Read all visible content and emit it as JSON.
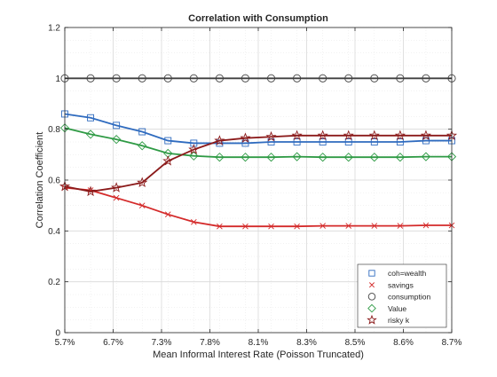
{
  "chart_data": {
    "type": "line",
    "title": "Correlation with Consumption",
    "xlabel": "Mean Informal Interest Rate (Poisson Truncated)",
    "ylabel": "Correlation Coefficient",
    "ylim": [
      0,
      1.2
    ],
    "yticks": [
      "0",
      "0.2",
      "0.4",
      "0.6",
      "0.8",
      "1",
      "1.2"
    ],
    "xticks": [
      "5.7%",
      "6.7%",
      "7.3%",
      "7.8%",
      "8.1%",
      "8.3%",
      "8.5%",
      "8.6%",
      "8.7%"
    ],
    "grid": true,
    "legend_position": "bottom-right",
    "series": [
      {
        "name": "coh=wealth",
        "color": "#2f6bbf",
        "marker": "square",
        "values": [
          0.86,
          0.845,
          0.815,
          0.79,
          0.755,
          0.745,
          0.745,
          0.745,
          0.75,
          0.75,
          0.75,
          0.75,
          0.75,
          0.75,
          0.755,
          0.755
        ]
      },
      {
        "name": "savings",
        "color": "#d42a2a",
        "marker": "x",
        "values": [
          0.57,
          0.56,
          0.53,
          0.5,
          0.465,
          0.435,
          0.418,
          0.418,
          0.418,
          0.418,
          0.42,
          0.42,
          0.42,
          0.42,
          0.422,
          0.422
        ]
      },
      {
        "name": "consumption",
        "color": "#404040",
        "marker": "circle",
        "values": [
          1,
          1,
          1,
          1,
          1,
          1,
          1,
          1,
          1,
          1,
          1,
          1,
          1,
          1,
          1,
          1
        ]
      },
      {
        "name": "Value",
        "color": "#2e9a44",
        "marker": "diamond",
        "values": [
          0.805,
          0.78,
          0.76,
          0.735,
          0.705,
          0.695,
          0.69,
          0.69,
          0.69,
          0.692,
          0.69,
          0.69,
          0.69,
          0.69,
          0.692,
          0.692
        ]
      },
      {
        "name": "risky k",
        "color": "#8b1a1a",
        "marker": "star",
        "values": [
          0.575,
          0.555,
          0.57,
          0.59,
          0.675,
          0.72,
          0.755,
          0.765,
          0.77,
          0.775,
          0.775,
          0.775,
          0.775,
          0.775,
          0.775,
          0.775
        ]
      }
    ]
  }
}
